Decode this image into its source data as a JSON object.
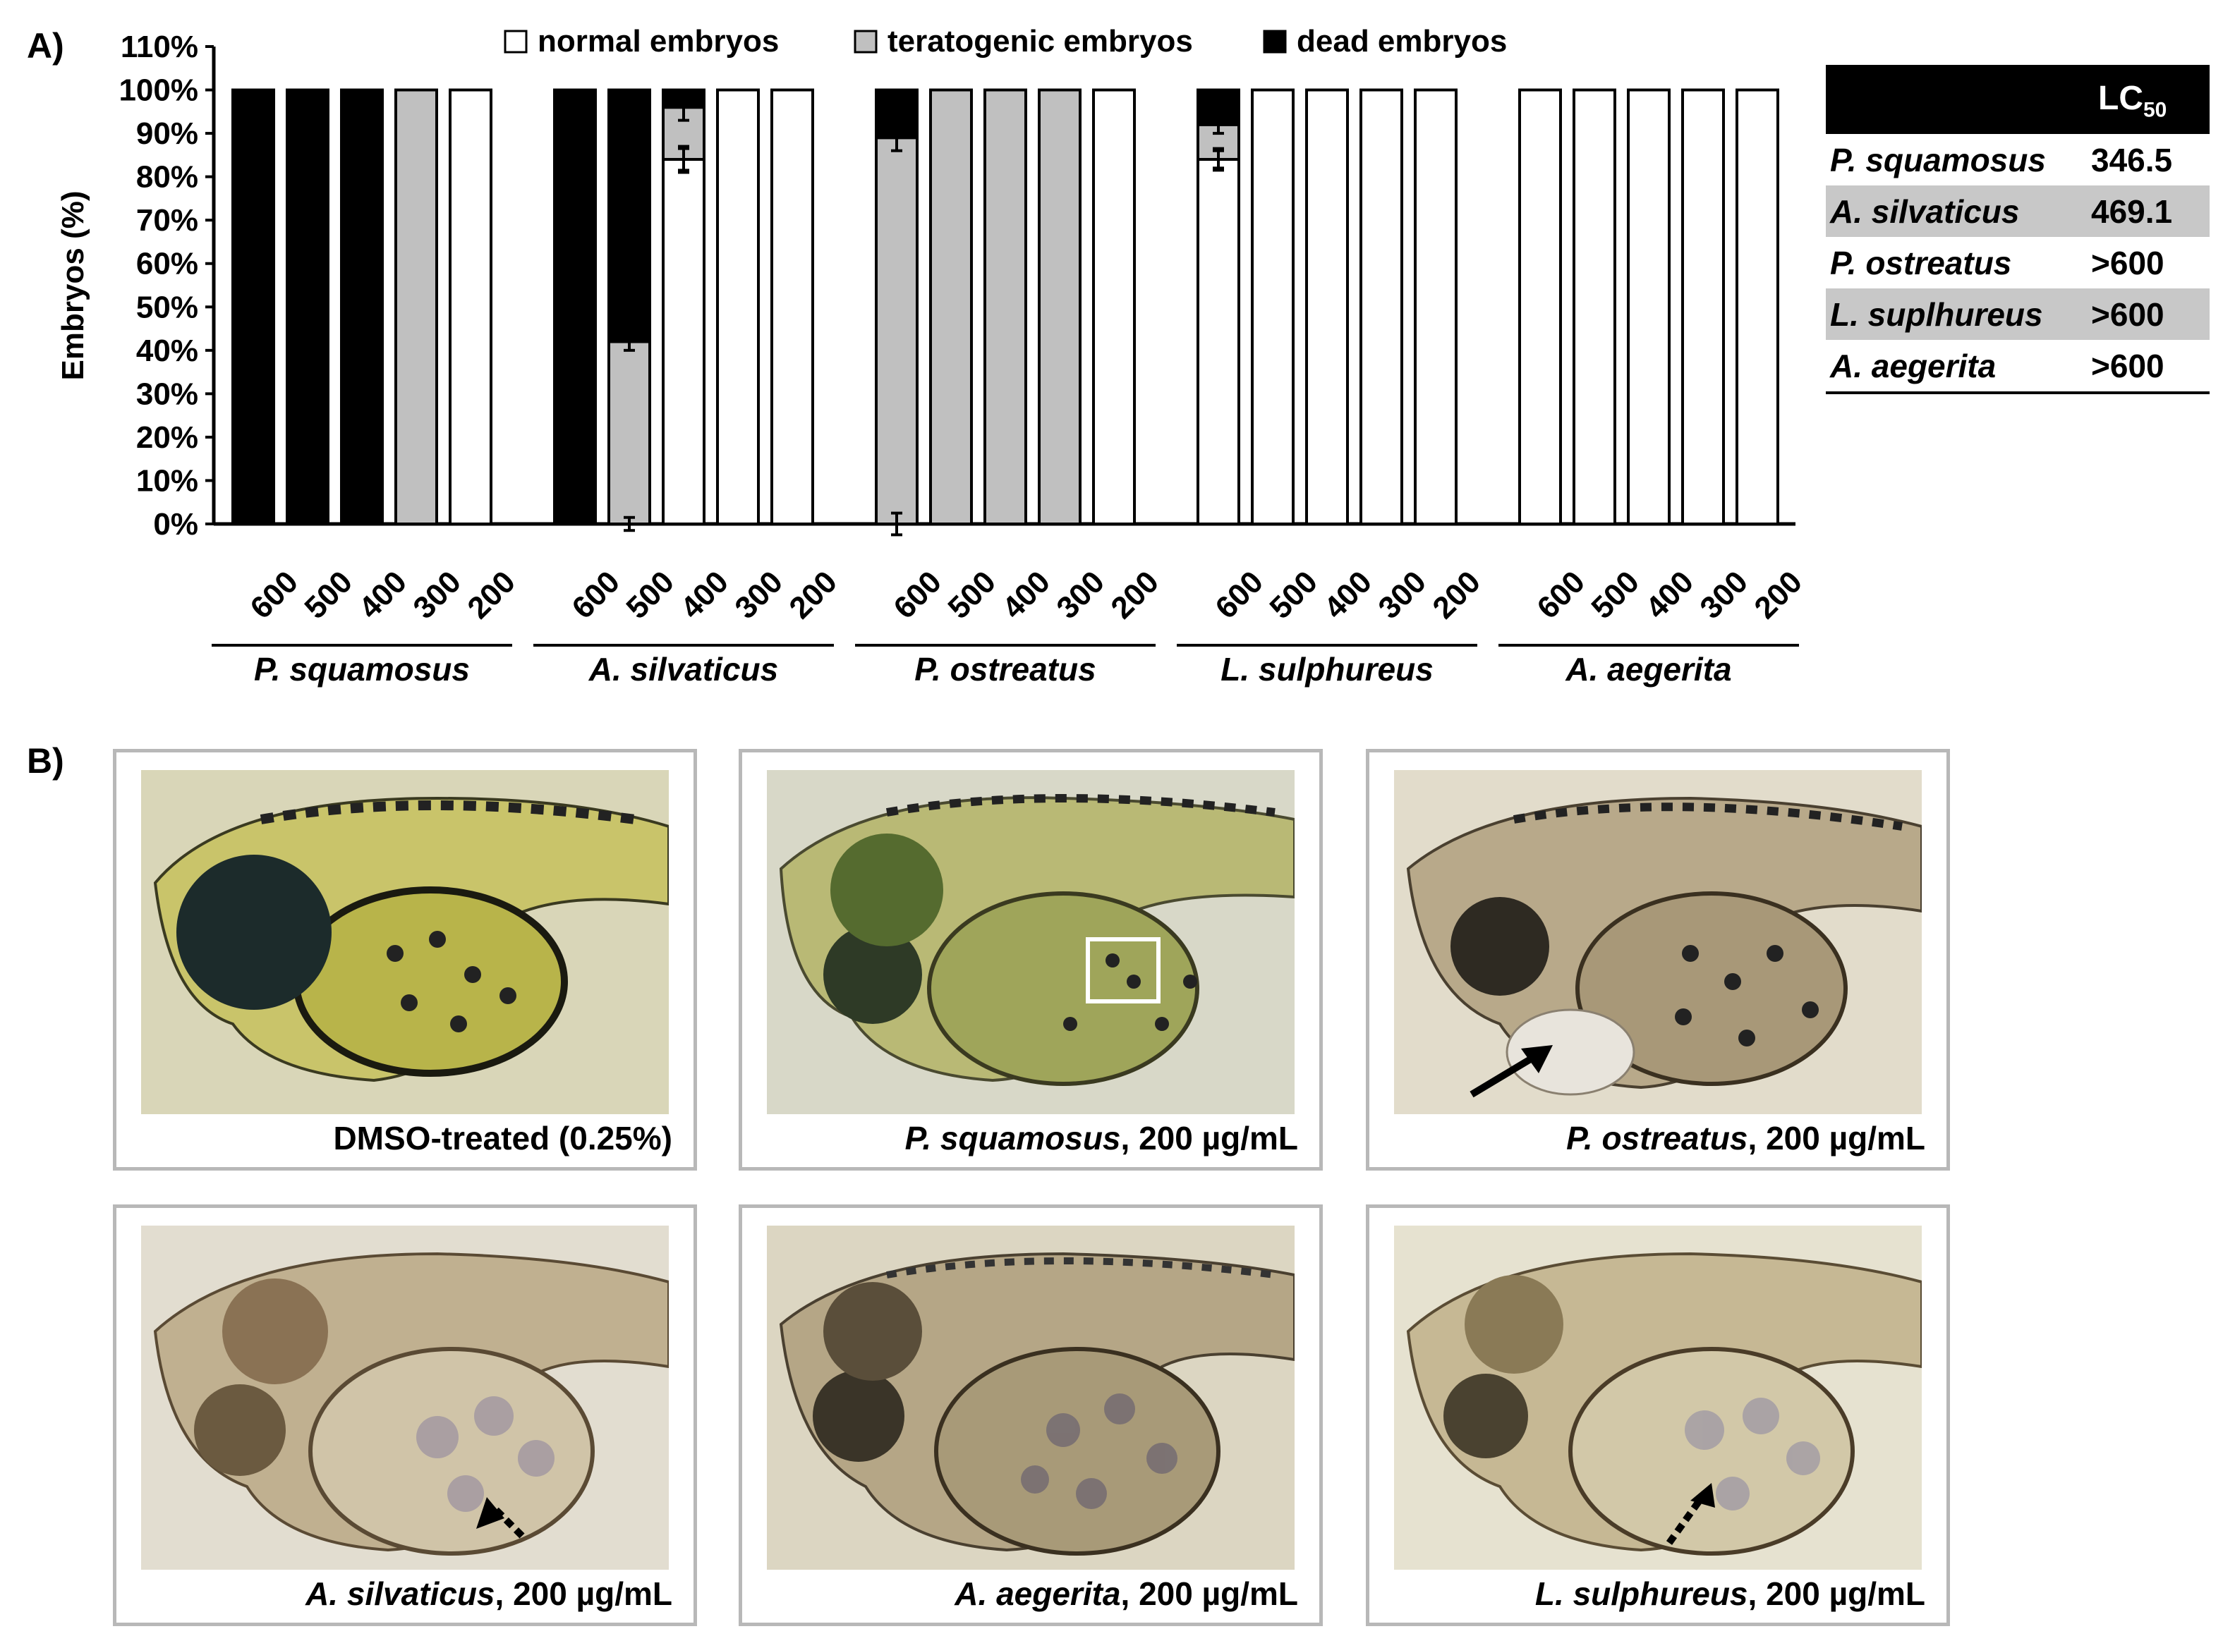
{
  "panel_a_label": "A)",
  "panel_b_label": "B)",
  "unit_label": "(µg/mL)",
  "legend": [
    {
      "label": "normal embryos",
      "color": "#ffffff"
    },
    {
      "label": "teratogenic embryos",
      "color": "#c0c0c0"
    },
    {
      "label": "dead embryos",
      "color": "#000000"
    }
  ],
  "chart_data": {
    "type": "bar",
    "stacked": true,
    "ylabel": "Embryos (%)",
    "ylim": [
      0,
      110
    ],
    "yticks": [
      "0%",
      "10%",
      "20%",
      "30%",
      "40%",
      "50%",
      "60%",
      "70%",
      "80%",
      "90%",
      "100%",
      "110%"
    ],
    "concentrations": [
      "600",
      "500",
      "400",
      "300",
      "200"
    ],
    "groups": [
      {
        "name": "P. squamosus",
        "bars": [
          {
            "conc": "600",
            "normal": 0,
            "teratogenic": 0,
            "dead": 100
          },
          {
            "conc": "500",
            "normal": 0,
            "teratogenic": 0,
            "dead": 100
          },
          {
            "conc": "400",
            "normal": 0,
            "teratogenic": 0,
            "dead": 100
          },
          {
            "conc": "300",
            "normal": 0,
            "teratogenic": 100,
            "dead": 0
          },
          {
            "conc": "200",
            "normal": 100,
            "teratogenic": 0,
            "dead": 0
          }
        ]
      },
      {
        "name": "A. silvaticus",
        "bars": [
          {
            "conc": "600",
            "normal": 0,
            "teratogenic": 0,
            "dead": 100
          },
          {
            "conc": "500",
            "normal": 0,
            "teratogenic": 42,
            "dead": 58,
            "err_dead": 2,
            "err_ter": 1.5
          },
          {
            "conc": "400",
            "normal": 84,
            "teratogenic": 12,
            "dead": 4,
            "err_dead": 3,
            "err_ter": 2.5,
            "err_norm": 3
          },
          {
            "conc": "300",
            "normal": 100,
            "teratogenic": 0,
            "dead": 0
          },
          {
            "conc": "200",
            "normal": 100,
            "teratogenic": 0,
            "dead": 0
          }
        ]
      },
      {
        "name": "P. ostreatus",
        "bars": [
          {
            "conc": "600",
            "normal": 0,
            "teratogenic": 89,
            "dead": 11,
            "err_dead": 3,
            "err_ter": 2.5
          },
          {
            "conc": "500",
            "normal": 0,
            "teratogenic": 100,
            "dead": 0
          },
          {
            "conc": "400",
            "normal": 0,
            "teratogenic": 100,
            "dead": 0
          },
          {
            "conc": "300",
            "normal": 0,
            "teratogenic": 100,
            "dead": 0
          },
          {
            "conc": "200",
            "normal": 100,
            "teratogenic": 0,
            "dead": 0
          }
        ]
      },
      {
        "name": "L. sulphureus",
        "bars": [
          {
            "conc": "600",
            "normal": 84,
            "teratogenic": 8,
            "dead": 8,
            "err_dead": 2,
            "err_ter": 2,
            "err_norm": 2.5
          },
          {
            "conc": "500",
            "normal": 100,
            "teratogenic": 0,
            "dead": 0
          },
          {
            "conc": "400",
            "normal": 100,
            "teratogenic": 0,
            "dead": 0
          },
          {
            "conc": "300",
            "normal": 100,
            "teratogenic": 0,
            "dead": 0
          },
          {
            "conc": "200",
            "normal": 100,
            "teratogenic": 0,
            "dead": 0
          }
        ]
      },
      {
        "name": "A. aegerita",
        "bars": [
          {
            "conc": "600",
            "normal": 100,
            "teratogenic": 0,
            "dead": 0
          },
          {
            "conc": "500",
            "normal": 100,
            "teratogenic": 0,
            "dead": 0
          },
          {
            "conc": "400",
            "normal": 100,
            "teratogenic": 0,
            "dead": 0
          },
          {
            "conc": "300",
            "normal": 100,
            "teratogenic": 0,
            "dead": 0
          },
          {
            "conc": "200",
            "normal": 100,
            "teratogenic": 0,
            "dead": 0
          }
        ]
      }
    ],
    "grid": false,
    "legend_position": "top"
  },
  "lc50_table": {
    "header_main": "LC",
    "header_sub": "50",
    "rows": [
      {
        "species": "P. squamosus",
        "value": "346.5"
      },
      {
        "species": "A. silvaticus",
        "value": "469.1"
      },
      {
        "species": "P. ostreatus",
        "value": ">600"
      },
      {
        "species": "L. suplhureus",
        "value": ">600"
      },
      {
        "species": "A. aegerita",
        "value": ">600"
      }
    ]
  },
  "photos": [
    {
      "caption_species": "",
      "caption_rest": "DMSO-treated (0.25%)"
    },
    {
      "caption_species": "P. squamosus",
      "caption_rest": ", 200 µg/mL"
    },
    {
      "caption_species": "P. ostreatus",
      "caption_rest": ", 200 µg/mL"
    },
    {
      "caption_species": "A. silvaticus",
      "caption_rest": ", 200 µg/mL"
    },
    {
      "caption_species": "A. aegerita",
      "caption_rest": ", 200 µg/mL"
    },
    {
      "caption_species": "L. sulphureus",
      "caption_rest": ", 200 µg/mL"
    }
  ],
  "colors": {
    "normal": "#ffffff",
    "teratogenic": "#c0c0c0",
    "dead": "#000000",
    "photo_border": "#b8b8b8"
  }
}
